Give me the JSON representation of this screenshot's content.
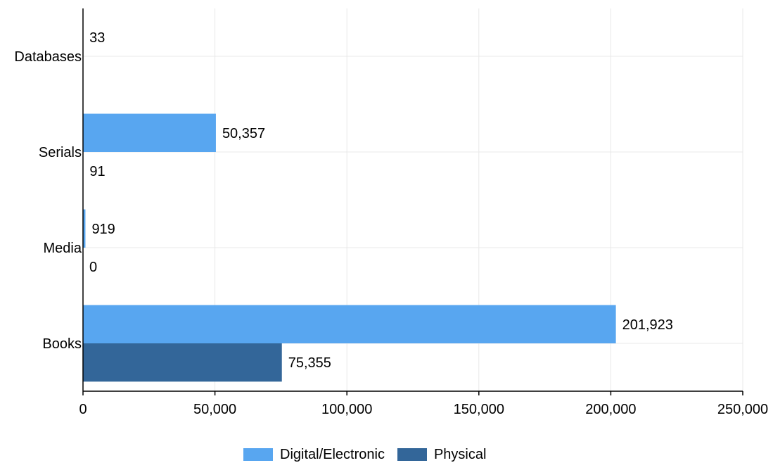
{
  "chart_data": {
    "type": "bar",
    "orientation": "horizontal",
    "categories": [
      "Databases",
      "Serials",
      "Media",
      "Books"
    ],
    "series": [
      {
        "name": "Digital/Electronic",
        "color": "#58A6F0",
        "values": [
          33,
          50357,
          919,
          201923
        ],
        "value_labels": [
          "33",
          "50,357",
          "919",
          "201,923"
        ]
      },
      {
        "name": "Physical",
        "color": "#336699",
        "values": [
          null,
          91,
          0,
          75355
        ],
        "value_labels": [
          "",
          "91",
          "0",
          "75,355"
        ]
      }
    ],
    "x_ticks": [
      0,
      50000,
      100000,
      150000,
      200000,
      250000
    ],
    "x_tick_labels": [
      "0",
      "50,000",
      "100,000",
      "150,000",
      "200,000",
      "250,000"
    ],
    "xlim": [
      0,
      250000
    ],
    "grid": true,
    "legend": "bottom-center",
    "title": "",
    "xlabel": "",
    "ylabel": ""
  }
}
